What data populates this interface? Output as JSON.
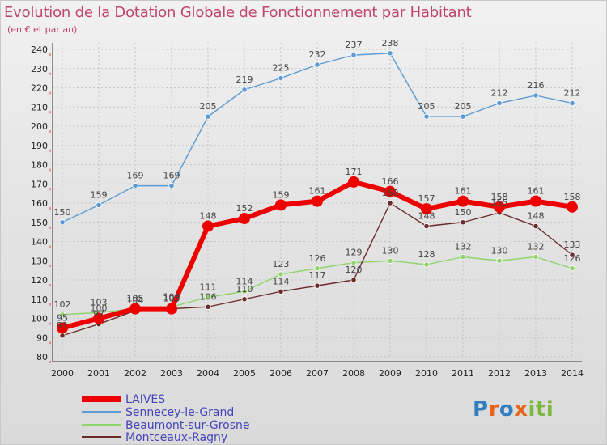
{
  "chart_data": {
    "type": "line",
    "title": "Evolution de la Dotation Globale de Fonctionnement par Habitant",
    "subtitle": "(en € et par an)",
    "categories": [
      "2000",
      "2001",
      "2002",
      "2003",
      "2004",
      "2005",
      "2006",
      "2007",
      "2008",
      "2009",
      "2010",
      "2011",
      "2012",
      "2013",
      "2014"
    ],
    "ylim": [
      80,
      240
    ],
    "yticks": [
      80,
      90,
      100,
      110,
      120,
      130,
      140,
      150,
      160,
      170,
      180,
      190,
      200,
      210,
      220,
      230,
      240
    ],
    "grid": true,
    "legend_position": "bottom-left",
    "series": [
      {
        "name": "Sennecey-le-Grand",
        "color": "#5a9bd4",
        "values": [
          150,
          159,
          169,
          169,
          205,
          219,
          225,
          232,
          237,
          238,
          205,
          205,
          212,
          216,
          212
        ]
      },
      {
        "name": "Beaumont-sur-Grosne",
        "color": "#8fd46a",
        "values": [
          102,
          103,
          105,
          106,
          111,
          114,
          123,
          126,
          129,
          130,
          128,
          132,
          130,
          132,
          126
        ]
      },
      {
        "name": "Montceaux-Ragny",
        "color": "#6b2a2a",
        "values": [
          91,
          97,
          104,
          105,
          106,
          110,
          114,
          117,
          120,
          160,
          148,
          150,
          155,
          148,
          133
        ]
      },
      {
        "name": "LAIVES",
        "color": "#ee0000",
        "values": [
          95,
          100,
          105,
          105,
          148,
          152,
          159,
          161,
          171,
          166,
          157,
          161,
          158,
          161,
          158
        ]
      }
    ],
    "legend": [
      "LAIVES",
      "Sennecey-le-Grand",
      "Beaumont-sur-Grosne",
      "Montceaux-Ragny"
    ]
  },
  "brand": {
    "logo_text": "Proxiti",
    "letters": [
      "P",
      "r",
      "o",
      "x",
      "i",
      "t",
      "i"
    ],
    "letter_colors": [
      "#2f7fc1",
      "#e8641b",
      "#2f7fc1",
      "#e8641b",
      "#7cb83b",
      "#7cb83b",
      "#7cb83b"
    ]
  }
}
